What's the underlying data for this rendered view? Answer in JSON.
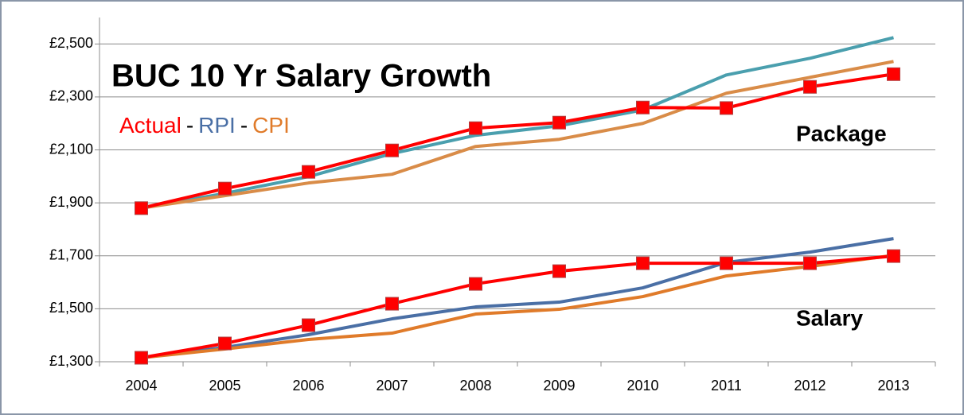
{
  "chart_data": {
    "type": "line",
    "title": "BUC 10 Yr Salary Growth",
    "annotations": [
      "Package",
      "Salary"
    ],
    "legend_separator": "-",
    "categories": [
      "2004",
      "2005",
      "2006",
      "2007",
      "2008",
      "2009",
      "2010",
      "2011",
      "2012",
      "2013"
    ],
    "ylim": [
      1300,
      2600
    ],
    "yticks": [
      {
        "value": 1300,
        "label": "£1,300"
      },
      {
        "value": 1500,
        "label": "£1,500"
      },
      {
        "value": 1700,
        "label": "£1,700"
      },
      {
        "value": 1900,
        "label": "£1,900"
      },
      {
        "value": 2100,
        "label": "£2,100"
      },
      {
        "value": 2300,
        "label": "£2,300"
      },
      {
        "value": 2500,
        "label": "£2,500"
      }
    ],
    "grid": true,
    "series": [
      {
        "name": "RPI",
        "color": "#4a9fae",
        "values": [
          1880,
          1936,
          1999,
          2086,
          2155,
          2191,
          2251,
          2383,
          2446,
          2524
        ]
      },
      {
        "name": "CPI",
        "color": "#d98c48",
        "values": [
          1880,
          1927,
          1975,
          2008,
          2113,
          2140,
          2200,
          2314,
          2374,
          2434
        ]
      },
      {
        "name": "Actual",
        "color": "#ff0000",
        "marker": "square",
        "values": [
          1880,
          1954,
          2017,
          2098,
          2182,
          2203,
          2260,
          2258,
          2338,
          2386
        ]
      },
      {
        "name": "RPI",
        "color": "#4a6fa5",
        "values": [
          1315,
          1354,
          1402,
          1462,
          1507,
          1525,
          1579,
          1675,
          1714,
          1765
        ]
      },
      {
        "name": "CPI",
        "color": "#e07b2a",
        "values": [
          1315,
          1348,
          1384,
          1408,
          1480,
          1498,
          1546,
          1624,
          1660,
          1702
        ]
      },
      {
        "name": "Actual",
        "color": "#ff0000",
        "marker": "square",
        "values": [
          1315,
          1369,
          1438,
          1519,
          1594,
          1642,
          1672,
          1672,
          1672,
          1699
        ]
      }
    ]
  }
}
